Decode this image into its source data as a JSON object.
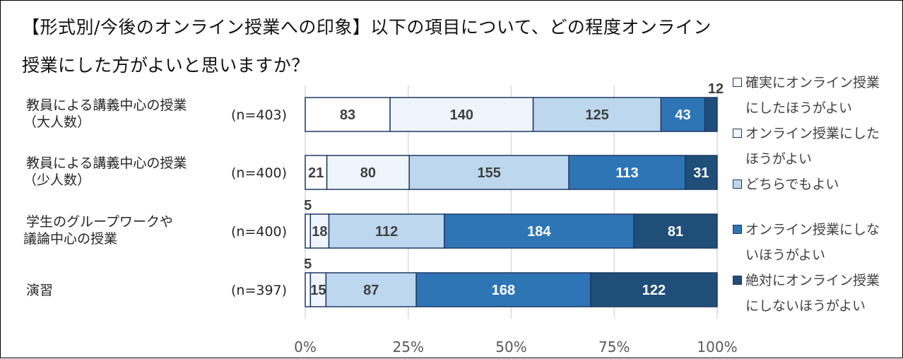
{
  "title": {
    "line1": "【形式別/今後のオンライン授業への印象】以下の項目について、どの程度オンライン",
    "line2": "授業にした方がよいと思いますか？"
  },
  "chart_data": {
    "type": "bar",
    "orientation": "horizontal",
    "stacked": "percent",
    "title": "【形式別/今後のオンライン授業への印象】以下の項目について、どの程度オンライン授業にした方がよいと思いますか？",
    "categories": [
      {
        "lines": [
          "教員による講義中心の授業",
          "（大人数）"
        ],
        "n": "(n=403)"
      },
      {
        "lines": [
          "教員による講義中心の授業",
          "（少人数）"
        ],
        "n": "(n=400)"
      },
      {
        "lines": [
          "学生のグループワークや",
          "議論中心の授業"
        ],
        "n": "(n=400)"
      },
      {
        "lines": [
          "演習"
        ],
        "n": "(n=397)"
      }
    ],
    "series": [
      {
        "name": "確実にオンライン授業にしたほうがよい",
        "legend_lines": [
          "確実にオンライン授業",
          "にしたほうがよい"
        ],
        "color": "#ffffff",
        "values": [
          83,
          21,
          5,
          5
        ]
      },
      {
        "name": "オンライン授業にしたほうがよい",
        "legend_lines": [
          "オンライン授業にした",
          "ほうがよい"
        ],
        "color": "#eef5fc",
        "values": [
          140,
          80,
          18,
          15
        ]
      },
      {
        "name": "どちらでもよい",
        "legend_lines": [
          "どちらでもよい"
        ],
        "color": "#bdd7ee",
        "values": [
          125,
          155,
          112,
          87
        ]
      },
      {
        "name": "オンライン授業にしないほうがよい",
        "legend_lines": [
          "オンライン授業にしな",
          "いほうがよい"
        ],
        "color": "#2e75b6",
        "values": [
          43,
          113,
          184,
          168
        ]
      },
      {
        "name": "絶対にオンライン授業にしないほうがよい",
        "legend_lines": [
          "絶対にオンライン授業",
          "にしないほうがよい"
        ],
        "color": "#1f4e79",
        "values": [
          12,
          31,
          81,
          122
        ]
      }
    ],
    "xaxis": {
      "ticks": [
        "0%",
        "25%",
        "50%",
        "75%",
        "100%"
      ],
      "range": [
        0,
        100
      ]
    },
    "grid": true,
    "legend_position": "right"
  }
}
